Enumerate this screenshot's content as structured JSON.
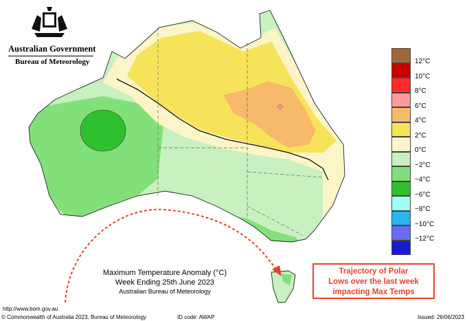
{
  "header": {
    "government": "Australian Government",
    "bureau": "Bureau of Meteorology"
  },
  "map": {
    "title": "Maximum Temperature Anomaly (°C)",
    "subtitle": "Week Ending 25th June 2023",
    "agency": "Australian Bureau of Meteorology",
    "url": "http://www.bom.gov.au"
  },
  "legend": {
    "items": [
      {
        "label": "12°C",
        "color": "#a0683a"
      },
      {
        "label": "10°C",
        "color": "#c80000"
      },
      {
        "label": "8°C",
        "color": "#ff2a2a"
      },
      {
        "label": "6°C",
        "color": "#ff9a9a"
      },
      {
        "label": "4°C",
        "color": "#f7b96a"
      },
      {
        "label": "2°C",
        "color": "#f7e35a"
      },
      {
        "label": "0°C",
        "color": "#fbf5c8"
      },
      {
        "label": "−2°C",
        "color": "#c8f0c0"
      },
      {
        "label": "−4°C",
        "color": "#82e07a"
      },
      {
        "label": "−6°C",
        "color": "#2ec02e"
      },
      {
        "label": "−8°C",
        "color": "#a0fff0"
      },
      {
        "label": "−10°C",
        "color": "#2ab4f0"
      },
      {
        "label": "−12°C",
        "color": "#6a6af0"
      },
      {
        "label": "",
        "color": "#1a1ad0"
      }
    ]
  },
  "callout": {
    "lines": [
      "Trajectory of Polar",
      "Lows over the last week",
      "impacting Max Temps"
    ],
    "color": "#e8412a"
  },
  "footer": {
    "copyright": "© Commonwealth of Australia 2023, Bureau of Meteorology",
    "id_code": "ID code: AWAP",
    "issued": "Issued: 26/06/2023"
  }
}
